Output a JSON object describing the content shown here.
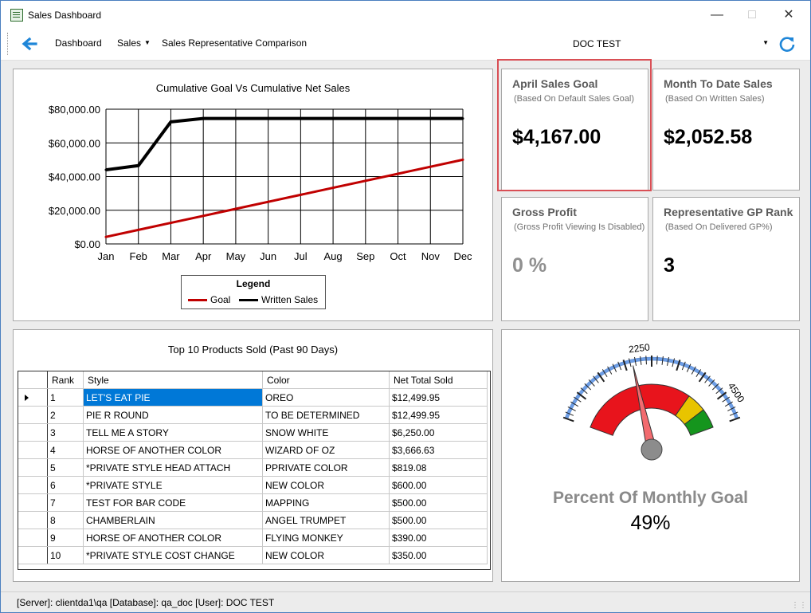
{
  "window": {
    "title": "Sales Dashboard"
  },
  "toolbar": {
    "items": [
      "Dashboard",
      "Sales",
      "Sales Representative Comparison"
    ],
    "combo_value": "DOC TEST"
  },
  "chart_data": {
    "type": "line",
    "title": "Cumulative Goal Vs Cumulative Net Sales",
    "categories": [
      "Jan",
      "Feb",
      "Mar",
      "Apr",
      "May",
      "Jun",
      "Jul",
      "Aug",
      "Sep",
      "Oct",
      "Nov",
      "Dec"
    ],
    "series": [
      {
        "name": "Goal",
        "color": "#c00000",
        "values": [
          4167,
          8333,
          12500,
          16667,
          20833,
          25000,
          29167,
          33333,
          37500,
          41667,
          45833,
          50000
        ]
      },
      {
        "name": "Written Sales",
        "color": "#000000",
        "values": [
          44000,
          46500,
          72500,
          74500,
          74500,
          74500,
          74500,
          74500,
          74500,
          74500,
          74500,
          74500
        ]
      }
    ],
    "ylim": [
      0,
      80000
    ],
    "yticks": [
      "$0.00",
      "$20,000.00",
      "$40,000.00",
      "$60,000.00",
      "$80,000.00"
    ],
    "grid": true,
    "legend_title": "Legend",
    "legend_position": "bottom"
  },
  "cards": [
    {
      "title": "April Sales Goal",
      "subtitle": "(Based On Default Sales Goal)",
      "value": "$4,167.00",
      "value_color": "#000000"
    },
    {
      "title": "Month To Date Sales",
      "subtitle": "(Based On Written Sales)",
      "value": "$2,052.58",
      "value_color": "#000000"
    },
    {
      "title": "Gross Profit",
      "subtitle": "(Gross Profit Viewing Is Disabled)",
      "value": "0 %",
      "value_color": "#909090"
    },
    {
      "title": "Representative GP Rank",
      "subtitle": "(Based On Delivered GP%)",
      "value": "3",
      "value_color": "#000000"
    }
  ],
  "products": {
    "title": "Top 10 Products Sold (Past 90 Days)",
    "columns": [
      "Rank",
      "Style",
      "Color",
      "Net Total Sold"
    ],
    "rows": [
      [
        "1",
        "LET'S EAT PIE",
        "OREO",
        "$12,499.95"
      ],
      [
        "2",
        "PIE R ROUND",
        "TO BE DETERMINED",
        "$12,499.95"
      ],
      [
        "3",
        "TELL ME A STORY",
        "SNOW WHITE",
        "$6,250.00"
      ],
      [
        "4",
        "HORSE OF ANOTHER COLOR",
        "WIZARD OF OZ",
        "$3,666.63"
      ],
      [
        "5",
        "*PRIVATE STYLE  HEAD ATTACH",
        "PPRIVATE COLOR",
        "$819.08"
      ],
      [
        "6",
        "*PRIVATE STYLE",
        "NEW COLOR",
        "$600.00"
      ],
      [
        "7",
        "TEST FOR BAR CODE",
        "MAPPING",
        "$500.00"
      ],
      [
        "8",
        "CHAMBERLAIN",
        "ANGEL TRUMPET",
        "$500.00"
      ],
      [
        "9",
        "HORSE OF ANOTHER COLOR",
        "FLYING MONKEY",
        "$390.00"
      ],
      [
        "10",
        "*PRIVATE STYLE COST CHANGE",
        "NEW COLOR",
        "$350.00"
      ]
    ]
  },
  "gauge": {
    "title": "Percent Of Monthly Goal",
    "percent_text": "49%",
    "value": 2052.58,
    "min": 0,
    "max": 5000,
    "tick_labels": [
      "2250",
      "4500"
    ],
    "zones": [
      {
        "color": "#e8141c",
        "from": 0,
        "to": 3750
      },
      {
        "color": "#e8c400",
        "from": 3750,
        "to": 4375
      },
      {
        "color": "#15951d",
        "from": 4375,
        "to": 5000
      }
    ],
    "needle_color": "#f26b6f"
  },
  "status": {
    "text": "[Server]: clientda1\\qa  [Database]: qa_doc  [User]: DOC TEST"
  }
}
